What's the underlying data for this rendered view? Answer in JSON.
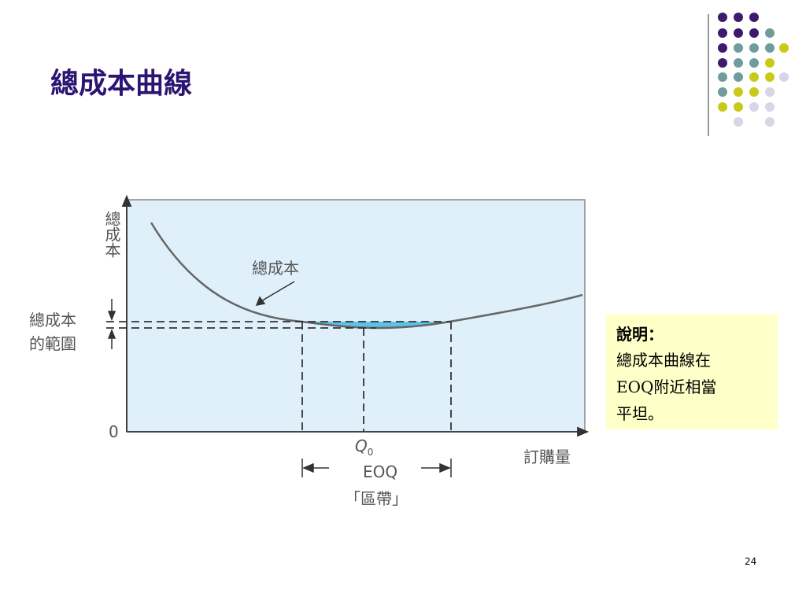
{
  "title": "總成本曲線",
  "diagram": {
    "y_axis_label": "總成本",
    "curve_label": "總成本",
    "range_label": [
      "總成本",
      "的範圍"
    ],
    "origin_label": "0",
    "q0_label": {
      "main": "Q",
      "sub": "0"
    },
    "x_axis_label": "訂購量",
    "zone_label": "EOQ",
    "zone_caption": "「區帶」"
  },
  "note": {
    "title": "說明：",
    "lines": [
      "總成本曲線在",
      "EOQ附近相當",
      "平坦。"
    ]
  },
  "page_number": "24"
}
